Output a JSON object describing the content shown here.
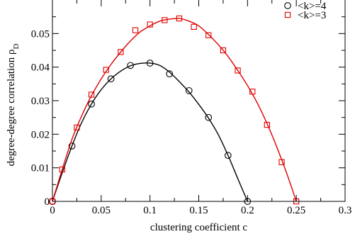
{
  "chart_data": {
    "type": "scatter",
    "xlabel": "clustering coefficient c",
    "ylabel": "degree-degree correlation ρ",
    "ylabel_subscript": "D",
    "xlim": [
      0,
      0.3
    ],
    "ylim": [
      0,
      0.06
    ],
    "xticks": [
      0,
      0.05,
      0.1,
      0.15,
      0.2,
      0.25,
      0.3
    ],
    "xtick_labels": [
      "0",
      "0.05",
      "0.1",
      "0.15",
      "0.2",
      "0.25",
      "0.3"
    ],
    "yticks": [
      0,
      0.01,
      0.02,
      0.03,
      0.04,
      0.05
    ],
    "ytick_labels": [
      "0",
      "0.01",
      "0.02",
      "0.03",
      "0.04",
      "0.05"
    ],
    "grid": false,
    "legend_position": "top-right",
    "series": [
      {
        "name": "<k>=4",
        "color": "#000000",
        "marker": "circle",
        "x": [
          0,
          0.02,
          0.04,
          0.06,
          0.08,
          0.1,
          0.12,
          0.14,
          0.16,
          0.18,
          0.2
        ],
        "y": [
          0,
          0.0165,
          0.029,
          0.0365,
          0.0405,
          0.0412,
          0.038,
          0.033,
          0.025,
          0.0137,
          0
        ],
        "fit_curve": {
          "x": [
            0,
            0.01,
            0.02,
            0.03,
            0.04,
            0.05,
            0.06,
            0.07,
            0.08,
            0.09,
            0.1,
            0.11,
            0.12,
            0.13,
            0.14,
            0.15,
            0.16,
            0.17,
            0.18,
            0.19,
            0.2
          ],
          "y": [
            0,
            0.0085,
            0.0165,
            0.0235,
            0.029,
            0.0333,
            0.0365,
            0.0388,
            0.0404,
            0.0411,
            0.0412,
            0.0405,
            0.0385,
            0.0357,
            0.0326,
            0.0289,
            0.0248,
            0.0199,
            0.0137,
            0.0068,
            0
          ]
        }
      },
      {
        "name": "<k>=3",
        "color": "#e00000",
        "marker": "square",
        "x": [
          0,
          0.01,
          0.025,
          0.04,
          0.055,
          0.07,
          0.085,
          0.1,
          0.115,
          0.13,
          0.145,
          0.16,
          0.175,
          0.19,
          0.205,
          0.22,
          0.235,
          0.25
        ],
        "y": [
          0,
          0.0095,
          0.022,
          0.0318,
          0.0392,
          0.0445,
          0.051,
          0.0527,
          0.054,
          0.0545,
          0.052,
          0.0495,
          0.045,
          0.039,
          0.0327,
          0.0228,
          0.0117,
          0
        ],
        "fit_curve": {
          "x": [
            0,
            0.01,
            0.02,
            0.03,
            0.04,
            0.05,
            0.06,
            0.07,
            0.08,
            0.09,
            0.1,
            0.11,
            0.12,
            0.13,
            0.14,
            0.15,
            0.16,
            0.17,
            0.18,
            0.19,
            0.2,
            0.21,
            0.22,
            0.23,
            0.24,
            0.25
          ],
          "y": [
            0,
            0.0095,
            0.0185,
            0.0255,
            0.0315,
            0.0365,
            0.0408,
            0.0445,
            0.0478,
            0.0505,
            0.0523,
            0.0537,
            0.0543,
            0.0545,
            0.0537,
            0.0523,
            0.0497,
            0.0467,
            0.0432,
            0.039,
            0.0345,
            0.0293,
            0.0232,
            0.0162,
            0.0085,
            0
          ]
        }
      }
    ]
  }
}
